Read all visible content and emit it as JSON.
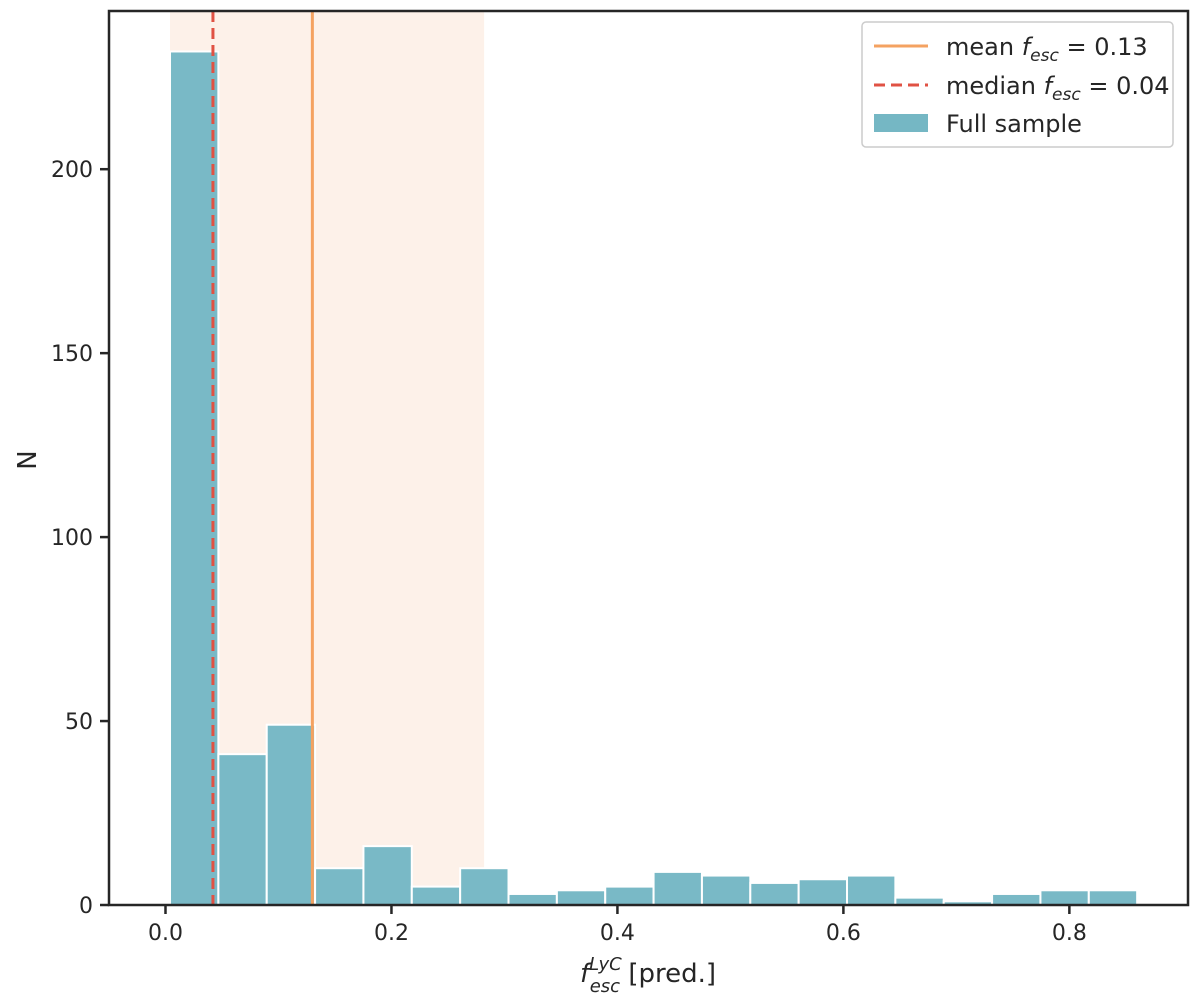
{
  "chart_data": {
    "type": "bar",
    "title": "",
    "xlabel": {
      "base": "f",
      "sup": "LyC",
      "sub": "esc",
      "suffix": " [pred.]"
    },
    "ylabel": "N",
    "xlim": [
      -0.05,
      0.905
    ],
    "ylim": [
      0,
      243
    ],
    "xticks": [
      0.0,
      0.2,
      0.4,
      0.6,
      0.8
    ],
    "xtick_labels": [
      "0.0",
      "0.2",
      "0.4",
      "0.6",
      "0.8"
    ],
    "yticks": [
      0,
      50,
      100,
      150,
      200
    ],
    "ytick_labels": [
      "0",
      "50",
      "100",
      "150",
      "200"
    ],
    "grid": false,
    "bin_edges": [
      0.004,
      0.0468,
      0.0896,
      0.1324,
      0.1752,
      0.218,
      0.2608,
      0.3036,
      0.3464,
      0.3892,
      0.432,
      0.4748,
      0.5176,
      0.5604,
      0.6032,
      0.646,
      0.6888,
      0.7316,
      0.7744,
      0.8172,
      0.86
    ],
    "series": [
      {
        "name": "Full sample",
        "color": "#75b7c4",
        "values": [
          232,
          41,
          49,
          10,
          16,
          5,
          10,
          3,
          4,
          5,
          9,
          8,
          6,
          7,
          8,
          2,
          1,
          3,
          4,
          4
        ]
      }
    ],
    "shaded_region": {
      "x0": 0.004,
      "x1": 0.282,
      "color": "#fdf1e9"
    },
    "vlines": [
      {
        "x": 0.13,
        "style": "solid",
        "color": "#f4a261",
        "label_prefix": "mean ",
        "label_var": "f",
        "label_sub": "esc",
        "label_suffix": " = 0.13"
      },
      {
        "x": 0.042,
        "style": "dashed",
        "color": "#e05244",
        "label_prefix": "median ",
        "label_var": "f",
        "label_sub": "esc",
        "label_suffix": " = 0.04"
      }
    ],
    "legend": {
      "placement": "top-right",
      "entries": [
        {
          "kind": "line-solid",
          "color": "#f4a261",
          "prefix": "mean ",
          "var": "f",
          "sub": "esc",
          "suffix": " = 0.13"
        },
        {
          "kind": "line-dashed",
          "color": "#e05244",
          "prefix": "median ",
          "var": "f",
          "sub": "esc",
          "suffix": " = 0.04"
        },
        {
          "kind": "patch",
          "color": "#75b7c4",
          "text": "Full sample"
        }
      ]
    }
  }
}
